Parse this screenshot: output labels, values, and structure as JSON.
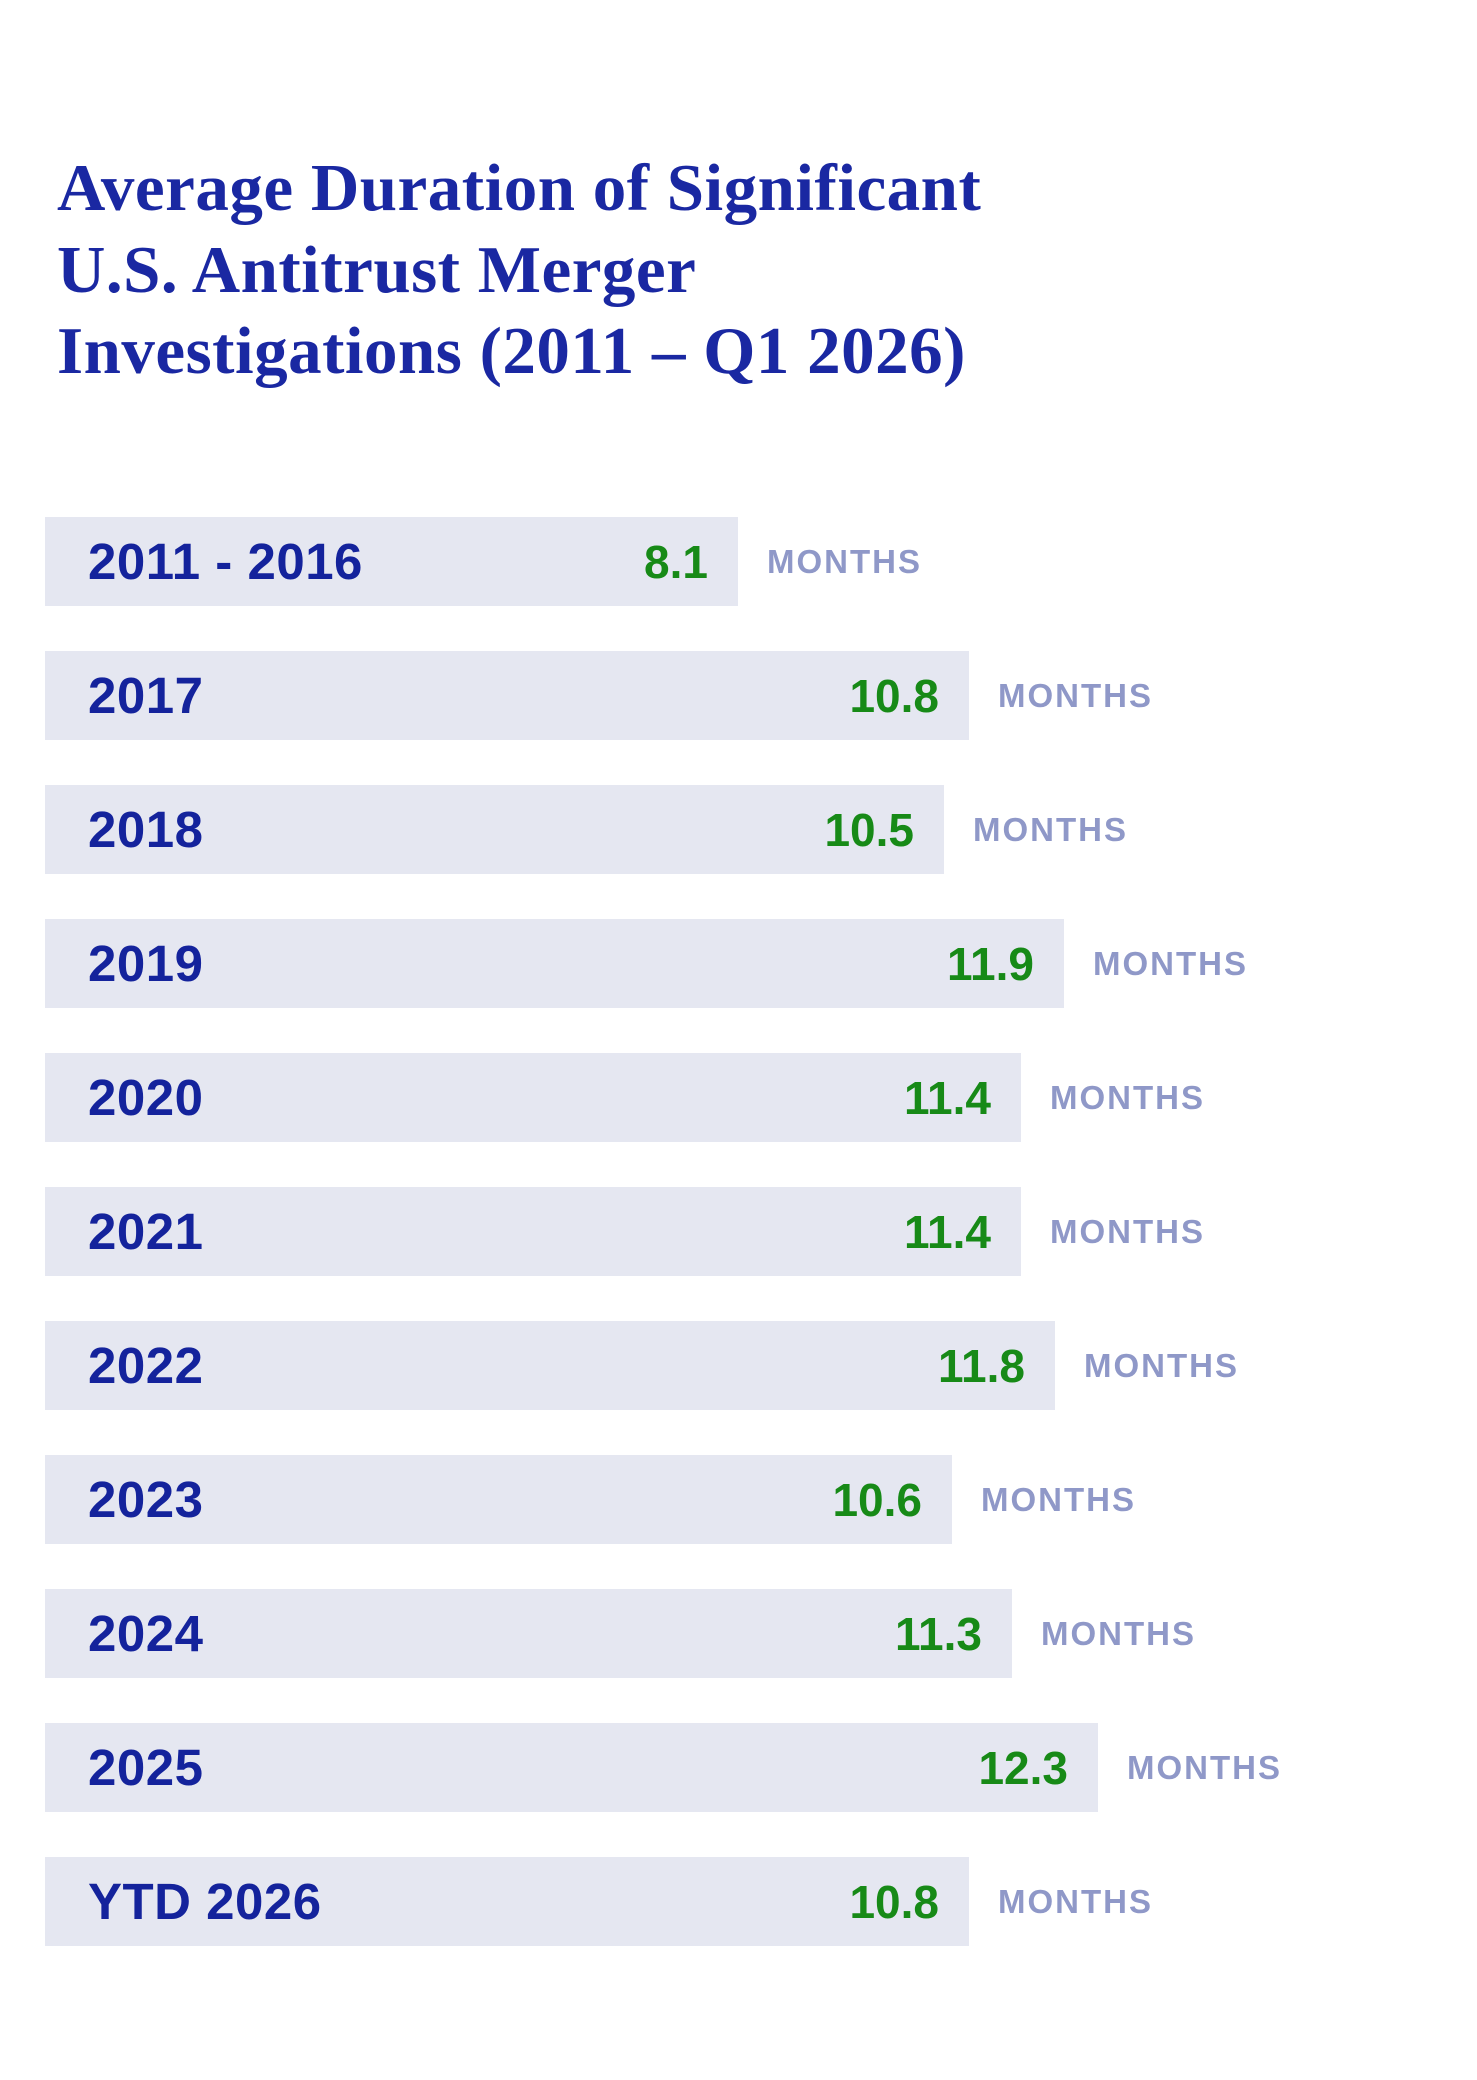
{
  "page": {
    "title_lines": [
      "Average Duration of Significant",
      "U.S. Antitrust Merger",
      "Investigations (2011 – Q1 2026)"
    ]
  },
  "chart_data": {
    "type": "bar",
    "orientation": "horizontal",
    "title": "Average Duration of Significant U.S. Antitrust Merger Investigations (2011 – Q1 2026)",
    "unit_label": "MONTHS",
    "categories": [
      "2011 - 2016",
      "2017",
      "2018",
      "2019",
      "2020",
      "2021",
      "2022",
      "2023",
      "2024",
      "2025",
      "YTD 2026"
    ],
    "values": [
      8.1,
      10.8,
      10.5,
      11.9,
      11.4,
      11.4,
      11.8,
      10.6,
      11.3,
      12.3,
      10.8
    ],
    "xlabel": "",
    "ylabel": "",
    "xlim": [
      0,
      12.3
    ],
    "grid": false,
    "legend": false,
    "colors": {
      "title": "#1a28a2",
      "category_label": "#14239c",
      "value_label": "#178a17",
      "unit_label": "#8f98c8",
      "bar_background": "#e5e7f1",
      "page_background": "#ffffff"
    }
  }
}
